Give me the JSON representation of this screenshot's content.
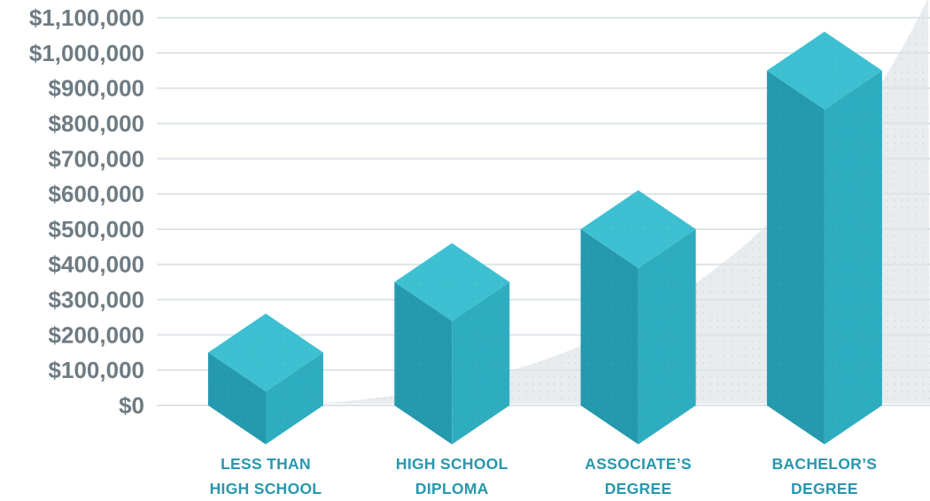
{
  "chart_data": {
    "type": "bar",
    "bar_style": "isometric-3d-cube",
    "categories": [
      "LESS THAN HIGH SCHOOL",
      "HIGH SCHOOL DIPLOMA",
      "ASSOCIATE’S DEGREE",
      "BACHELOR’S DEGREE"
    ],
    "category_label_lines": [
      [
        "LESS THAN",
        "HIGH SCHOOL"
      ],
      [
        "HIGH SCHOOL",
        "DIPLOMA"
      ],
      [
        "ASSOCIATE’S",
        "DEGREE"
      ],
      [
        "BACHELOR’S",
        "DEGREE"
      ]
    ],
    "values": [
      150000,
      350000,
      500000,
      950000
    ],
    "xlabel": "",
    "ylabel": "",
    "ylim": [
      0,
      1100000
    ],
    "y_tick_step": 100000,
    "y_tick_labels": [
      "$0",
      "$100,000",
      "$200,000",
      "$300,000",
      "$400,000",
      "$500,000",
      "$600,000",
      "$700,000",
      "$800,000",
      "$900,000",
      "$1,000,000",
      "$1,100,000"
    ],
    "grid": true,
    "legend": false,
    "background_decoration": "light-gray exponential swoosh area rising left-to-right behind bars",
    "colors": {
      "cube_top": "#3ec0d3",
      "cube_left": "#2599ae",
      "cube_right": "#2fadc0",
      "grid_line": "#dde4e9",
      "axis_label": "#6e7b83",
      "category_label": "#2997ad",
      "swoosh_fill": "#e9ecef",
      "swoosh_dots": "#d6dce1",
      "background": "#ffffff"
    }
  }
}
